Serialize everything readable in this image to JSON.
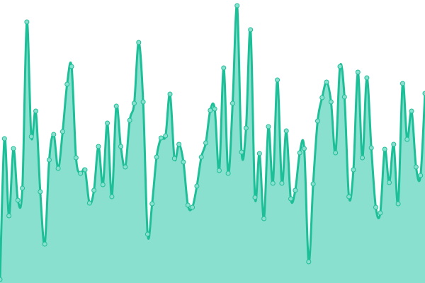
{
  "chart_data": {
    "type": "area",
    "title": "",
    "xlabel": "",
    "ylabel": "",
    "grid": false,
    "legend": "none",
    "ylim": [
      0,
      400
    ],
    "curve": "smooth",
    "values": [
      5,
      204,
      95,
      190,
      117,
      134,
      369,
      207,
      243,
      129,
      55,
      174,
      210,
      162,
      214,
      281,
      306,
      177,
      155,
      160,
      113,
      131,
      193,
      139,
      226,
      122,
      250,
      193,
      164,
      230,
      254,
      340,
      256,
      69,
      112,
      178,
      205,
      208,
      267,
      176,
      196,
      171,
      110,
      107,
      137,
      178,
      198,
      244,
      246,
      159,
      304,
      155,
      254,
      392,
      185,
      219,
      358,
      121,
      183,
      91,
      221,
      141,
      287,
      141,
      215,
      119,
      131,
      184,
      190,
      30,
      140,
      229,
      262,
      284,
      256,
      184,
      306,
      263,
      122,
      160,
      298,
      177,
      290,
      191,
      107,
      99,
      189,
      142,
      196,
      112,
      282,
      203,
      243,
      164,
      152,
      268
    ],
    "colors": {
      "line": "#1dbf98",
      "fill": "#8ae0cf",
      "marker_fill": "#8ae0cf",
      "marker_stroke": "#1dbf98"
    }
  }
}
